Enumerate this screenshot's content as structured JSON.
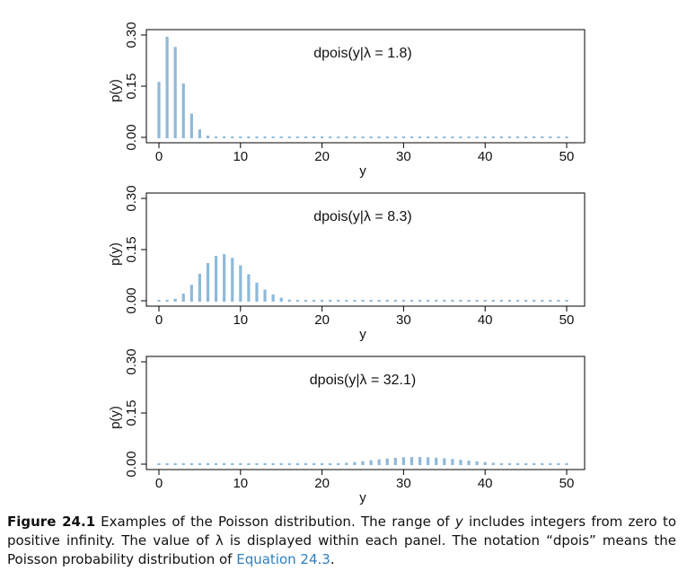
{
  "chart_data": [
    {
      "type": "bar",
      "title": "dpois(y|λ = 1.8)",
      "lambda": 1.8,
      "xlabel": "y",
      "ylabel": "p(y)",
      "xlim": [
        0,
        50
      ],
      "ylim": [
        0,
        0.3
      ],
      "xticks": [
        "0",
        "10",
        "20",
        "30",
        "40",
        "50"
      ],
      "yticks": [
        "0.00",
        "0.15",
        "0.30"
      ],
      "x": [
        0,
        1,
        2,
        3,
        4,
        5,
        6,
        7,
        8,
        9,
        10,
        11,
        12,
        13,
        14,
        15,
        16,
        17,
        18,
        19,
        20,
        21,
        22,
        23,
        24,
        25,
        26,
        27,
        28,
        29,
        30,
        31,
        32,
        33,
        34,
        35,
        36,
        37,
        38,
        39,
        40,
        41,
        42,
        43,
        44,
        45,
        46,
        47,
        48,
        49,
        50
      ],
      "values": [
        0.1653,
        0.2975,
        0.2678,
        0.1607,
        0.0723,
        0.026,
        0.0078,
        0.002,
        0.0005,
        0.0001,
        0,
        0,
        0,
        0,
        0,
        0,
        0,
        0,
        0,
        0,
        0,
        0,
        0,
        0,
        0,
        0,
        0,
        0,
        0,
        0,
        0,
        0,
        0,
        0,
        0,
        0,
        0,
        0,
        0,
        0,
        0,
        0,
        0,
        0,
        0,
        0,
        0,
        0,
        0,
        0,
        0
      ]
    },
    {
      "type": "bar",
      "title": "dpois(y|λ = 8.3)",
      "lambda": 8.3,
      "xlabel": "y",
      "ylabel": "p(y)",
      "xlim": [
        0,
        50
      ],
      "ylim": [
        0,
        0.3
      ],
      "xticks": [
        "0",
        "10",
        "20",
        "30",
        "40",
        "50"
      ],
      "yticks": [
        "0.00",
        "0.15",
        "0.30"
      ],
      "x": [
        0,
        1,
        2,
        3,
        4,
        5,
        6,
        7,
        8,
        9,
        10,
        11,
        12,
        13,
        14,
        15,
        16,
        17,
        18,
        19,
        20,
        21,
        22,
        23,
        24,
        25,
        26,
        27,
        28,
        29,
        30,
        31,
        32,
        33,
        34,
        35,
        36,
        37,
        38,
        39,
        40,
        41,
        42,
        43,
        44,
        45,
        46,
        47,
        48,
        49,
        50
      ],
      "values": [
        0.0002,
        0.0021,
        0.0086,
        0.0237,
        0.0493,
        0.0818,
        0.1131,
        0.1341,
        0.1392,
        0.1283,
        0.1065,
        0.0804,
        0.0556,
        0.0355,
        0.021,
        0.0116,
        0.006,
        0.0029,
        0.0014,
        0.0006,
        0.0002,
        0.0001,
        0,
        0,
        0,
        0,
        0,
        0,
        0,
        0,
        0,
        0,
        0,
        0,
        0,
        0,
        0,
        0,
        0,
        0,
        0,
        0,
        0,
        0,
        0,
        0,
        0,
        0,
        0,
        0,
        0
      ]
    },
    {
      "type": "bar",
      "title": "dpois(y|λ = 32.1)",
      "lambda": 32.1,
      "xlabel": "y",
      "ylabel": "p(y)",
      "xlim": [
        0,
        50
      ],
      "ylim": [
        0,
        0.3
      ],
      "xticks": [
        "0",
        "10",
        "20",
        "30",
        "40",
        "50"
      ],
      "yticks": [
        "0.00",
        "0.15",
        "0.30"
      ],
      "x": [
        0,
        1,
        2,
        3,
        4,
        5,
        6,
        7,
        8,
        9,
        10,
        11,
        12,
        13,
        14,
        15,
        16,
        17,
        18,
        19,
        20,
        21,
        22,
        23,
        24,
        25,
        26,
        27,
        28,
        29,
        30,
        31,
        32,
        33,
        34,
        35,
        36,
        37,
        38,
        39,
        40,
        41,
        42,
        43,
        44,
        45,
        46,
        47,
        48,
        49,
        50
      ],
      "values": [
        0,
        0,
        0,
        0,
        0,
        0,
        0,
        0,
        0,
        0,
        0,
        0,
        0,
        0,
        0,
        0.0001,
        0.0002,
        0.0004,
        0.0008,
        0.0013,
        0.0021,
        0.0033,
        0.0048,
        0.0066,
        0.0089,
        0.0114,
        0.0141,
        0.0168,
        0.0192,
        0.0213,
        0.0228,
        0.0236,
        0.0237,
        0.023,
        0.0217,
        0.0199,
        0.0178,
        0.0154,
        0.013,
        0.0107,
        0.0086,
        0.0067,
        0.0051,
        0.0038,
        0.0028,
        0.002,
        0.0014,
        0.0009,
        0.0006,
        0.0004,
        0.0003
      ]
    }
  ],
  "caption": {
    "label": "Figure 24.1",
    "text_part1": "Examples of the Poisson distribution. The range of ",
    "var_y": "y",
    "text_part2": " includes integers from zero to positive infinity. The value of ",
    "var_lambda": "λ",
    "text_part3": " is displayed within each panel. The notation “dpois” means the Poisson probability distribution of ",
    "link_text": "Equation 24.3",
    "text_end": "."
  },
  "colors": {
    "bar": "#8fb9d9",
    "axis": "#000000"
  }
}
